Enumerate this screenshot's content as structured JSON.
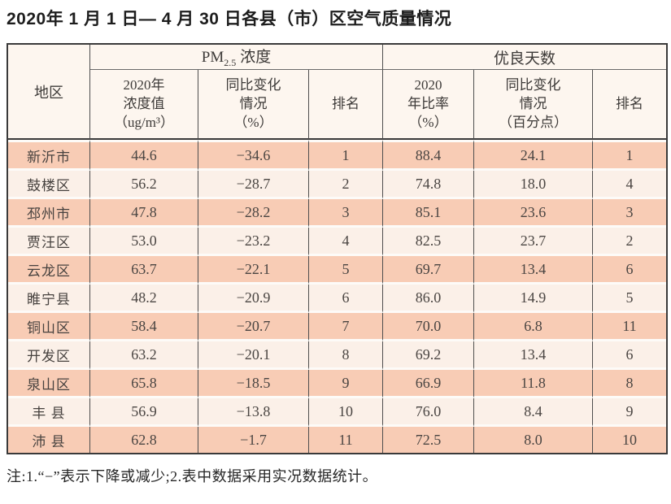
{
  "colors": {
    "row-odd": "#f8ccb5",
    "row-even": "#fbf0e8",
    "header-bg": "#fdf6ef",
    "border-dark": "#3a3a3a",
    "border-mid": "#4f4f4f",
    "row-gap": "#fdfbf8",
    "text-main": "#4a4542",
    "title-color": "#1d1d1d"
  },
  "page": {
    "title": "2020年 1 月 1 日— 4 月 30 日各县（市）区空气质量情况",
    "footnote": "注:1.“−”表示下降或减少;2.表中数据采用实况数据统计。"
  },
  "table": {
    "region_header": "地区",
    "pm_group": {
      "prefix": "PM",
      "sub": "2.5",
      "suffix": "浓度"
    },
    "good_group_label": "优良天数",
    "subheaders": {
      "pm_value": "2020年\n浓度值\n（ug/m³）",
      "pm_change": "同比变化\n情况\n（%）",
      "pm_rank": "排名",
      "good_ratio": "2020\n年比率\n（%）",
      "good_change": "同比变化\n情况\n（百分点）",
      "good_rank": "排名"
    },
    "row_keys": [
      "region",
      "pm_value",
      "pm_change",
      "pm_rank",
      "good_ratio",
      "good_change",
      "good_rank"
    ],
    "rows": [
      {
        "region": "新沂市",
        "pm_value": "44.6",
        "pm_change": "−34.6",
        "pm_rank": "1",
        "good_ratio": "88.4",
        "good_change": "24.1",
        "good_rank": "1"
      },
      {
        "region": "鼓楼区",
        "pm_value": "56.2",
        "pm_change": "−28.7",
        "pm_rank": "2",
        "good_ratio": "74.8",
        "good_change": "18.0",
        "good_rank": "4"
      },
      {
        "region": "邳州市",
        "pm_value": "47.8",
        "pm_change": "−28.2",
        "pm_rank": "3",
        "good_ratio": "85.1",
        "good_change": "23.6",
        "good_rank": "3"
      },
      {
        "region": "贾汪区",
        "pm_value": "53.0",
        "pm_change": "−23.2",
        "pm_rank": "4",
        "good_ratio": "82.5",
        "good_change": "23.7",
        "good_rank": "2"
      },
      {
        "region": "云龙区",
        "pm_value": "63.7",
        "pm_change": "−22.1",
        "pm_rank": "5",
        "good_ratio": "69.7",
        "good_change": "13.4",
        "good_rank": "6"
      },
      {
        "region": "睢宁县",
        "pm_value": "48.2",
        "pm_change": "−20.9",
        "pm_rank": "6",
        "good_ratio": "86.0",
        "good_change": "14.9",
        "good_rank": "5"
      },
      {
        "region": "铜山区",
        "pm_value": "58.4",
        "pm_change": "−20.7",
        "pm_rank": "7",
        "good_ratio": "70.0",
        "good_change": "6.8",
        "good_rank": "11"
      },
      {
        "region": "开发区",
        "pm_value": "63.2",
        "pm_change": "−20.1",
        "pm_rank": "8",
        "good_ratio": "69.2",
        "good_change": "13.4",
        "good_rank": "6"
      },
      {
        "region": "泉山区",
        "pm_value": "65.8",
        "pm_change": "−18.5",
        "pm_rank": "9",
        "good_ratio": "66.9",
        "good_change": "11.8",
        "good_rank": "8"
      },
      {
        "region": "丰 县",
        "pm_value": "56.9",
        "pm_change": "−13.8",
        "pm_rank": "10",
        "good_ratio": "76.0",
        "good_change": "8.4",
        "good_rank": "9"
      },
      {
        "region": "沛 县",
        "pm_value": "62.8",
        "pm_change": "−1.7",
        "pm_rank": "11",
        "good_ratio": "72.5",
        "good_change": "8.0",
        "good_rank": "10"
      }
    ]
  }
}
